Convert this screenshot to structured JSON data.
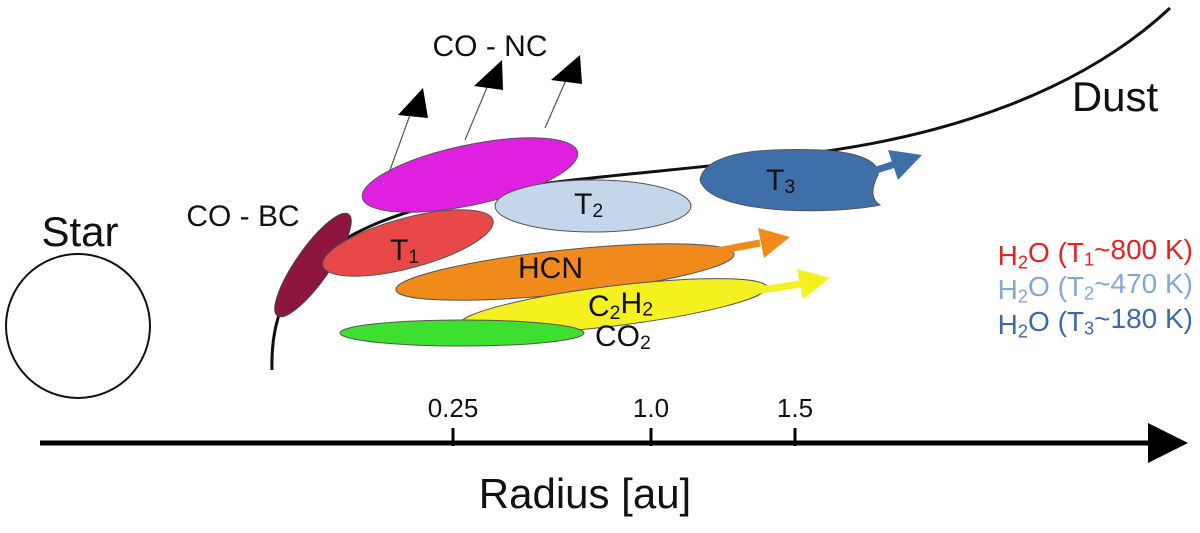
{
  "star": "Star",
  "dust": "Dust",
  "co_bc": "CO - BC",
  "co_nc": "CO - NC",
  "regions": [
    [
      "T",
      "1"
    ],
    [
      "T",
      "2"
    ],
    [
      "T",
      "3"
    ],
    [
      "HCN"
    ],
    [
      "C",
      "2",
      "H",
      "2"
    ],
    [
      "CO",
      "2"
    ]
  ],
  "legend": [
    [
      "H",
      "2",
      "O (T",
      "1",
      "~800 K)"
    ],
    [
      "H",
      "2",
      "O (T",
      "2",
      "~470 K)"
    ],
    [
      "H",
      "2",
      "O (T",
      "3",
      "~180 K)"
    ]
  ],
  "axis": {
    "ticks": [
      "0.25",
      "1.0",
      "1.5"
    ],
    "label": "Radius [au]"
  }
}
